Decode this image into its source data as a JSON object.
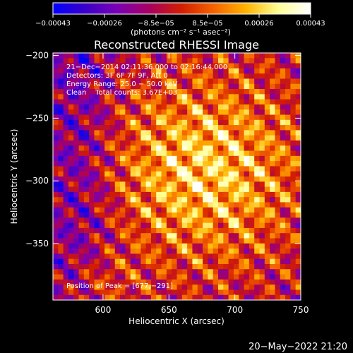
{
  "chart_data": {
    "type": "heatmap",
    "title": "Reconstructed RHESSI Image",
    "xlabel": "Heliocentric X (arcsec)",
    "ylabel": "Heliocentric Y (arcsec)",
    "xlim": [
      562,
      750
    ],
    "ylim": [
      -395,
      -198
    ],
    "x_ticks": [
      {
        "value": 600,
        "label": "600"
      },
      {
        "value": 650,
        "label": "650"
      },
      {
        "value": 700,
        "label": "700"
      },
      {
        "value": 750,
        "label": "750"
      }
    ],
    "y_ticks": [
      {
        "value": -200,
        "label": "−200"
      },
      {
        "value": -250,
        "label": "−250"
      },
      {
        "value": -300,
        "label": "−300"
      },
      {
        "value": -350,
        "label": "−350"
      }
    ],
    "colorbar": {
      "range": [
        -0.00043,
        0.00043
      ],
      "tick_labels": [
        "−0.00043",
        "−0.00026",
        "−8.5e−05",
        "8.5e−05",
        "0.00026",
        "0.00043"
      ],
      "units_label": "(photons cm⁻² s⁻¹ asec⁻²)",
      "colors": [
        "#0000ff",
        "#3a00c8",
        "#7a00b4",
        "#a80060",
        "#d21e00",
        "#f56400",
        "#ffb400",
        "#ffff96",
        "#ffffff"
      ]
    },
    "annotations": [
      "21−Dec−2014 02:11:36.000 to 02:16:44.000",
      "Detectors: 3F 6F 7F 9F, Att 0",
      "Energy Range: 25.0 − 50.0 keV",
      "Clean    Total counts: 3.67E+03"
    ],
    "peak_label": "Position of Peak = [677,−291]",
    "peak": [
      677,
      -291
    ],
    "grid": false
  },
  "footer": {
    "timestamp": "20−May−2022 21:20"
  }
}
